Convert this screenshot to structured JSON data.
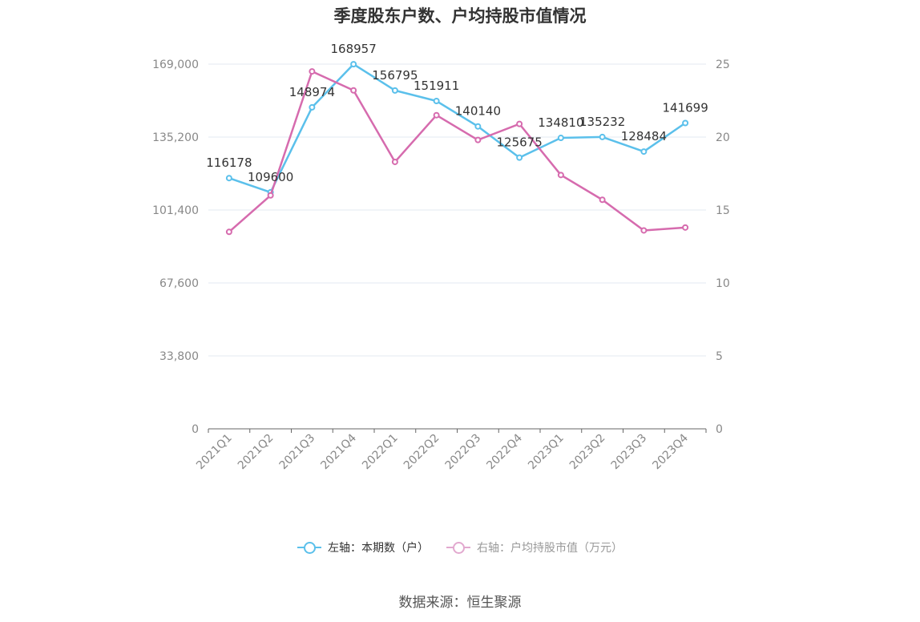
{
  "chart_data": {
    "type": "line",
    "title": "季度股东户数、户均持股市值情况",
    "categories": [
      "2021Q1",
      "2021Q2",
      "2021Q3",
      "2021Q4",
      "2022Q1",
      "2022Q2",
      "2022Q3",
      "2022Q4",
      "2023Q1",
      "2023Q2",
      "2023Q3",
      "2023Q4"
    ],
    "left_axis": {
      "min": 0,
      "max": 169000,
      "ticks": [
        "0",
        "33,800",
        "67,600",
        "101,400",
        "135,200",
        "169,000"
      ]
    },
    "right_axis": {
      "min": 0,
      "max": 25,
      "ticks": [
        "0",
        "5",
        "10",
        "15",
        "20",
        "25"
      ]
    },
    "grid": true,
    "legend_position": "bottom",
    "series": [
      {
        "name": "左轴：本期数（户）",
        "axis": "left",
        "color": "#5bc0eb",
        "values": [
          116178,
          109600,
          148974,
          168957,
          156795,
          151911,
          140140,
          125675,
          134810,
          135232,
          128484,
          141699
        ],
        "labels": [
          "116178",
          "109600",
          "148974",
          "168957",
          "156795",
          "151911",
          "140140",
          "125675",
          "134810",
          "135232",
          "128484",
          "141699"
        ]
      },
      {
        "name": "右轴：户均持股市值（万元）",
        "axis": "right",
        "color": "#d66bae",
        "values": [
          13.5,
          16.0,
          24.5,
          23.2,
          18.3,
          21.5,
          19.8,
          20.9,
          17.4,
          15.7,
          13.6,
          13.8
        ]
      }
    ]
  },
  "legend": {
    "left_label": "左轴：本期数（户）",
    "right_label": "右轴：户均持股市值（万元）",
    "left_color": "#5bc0eb",
    "right_color": "#e2a9cf"
  },
  "source": "数据来源：恒生聚源"
}
